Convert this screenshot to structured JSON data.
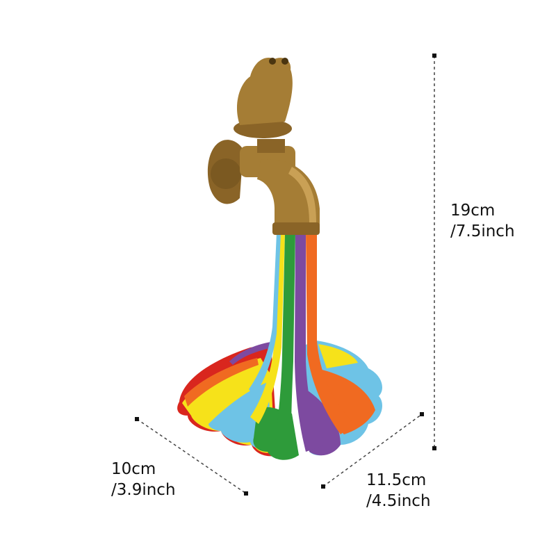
{
  "product": {
    "colors": {
      "brass": "#a57d35",
      "brass_dark": "#6b4e1c",
      "red": "#d9261e",
      "orange": "#f06a21",
      "yellow": "#f6e21a",
      "blue": "#6ec3e6",
      "green": "#2e9b3a",
      "purple": "#7d4aa0"
    }
  },
  "dimensions": {
    "height": {
      "cm": "19cm",
      "inch": "/7.5inch"
    },
    "width": {
      "cm": "10cm",
      "inch": "/3.9inch"
    },
    "depth": {
      "cm": "11.5cm",
      "inch": "/4.5inch"
    }
  }
}
